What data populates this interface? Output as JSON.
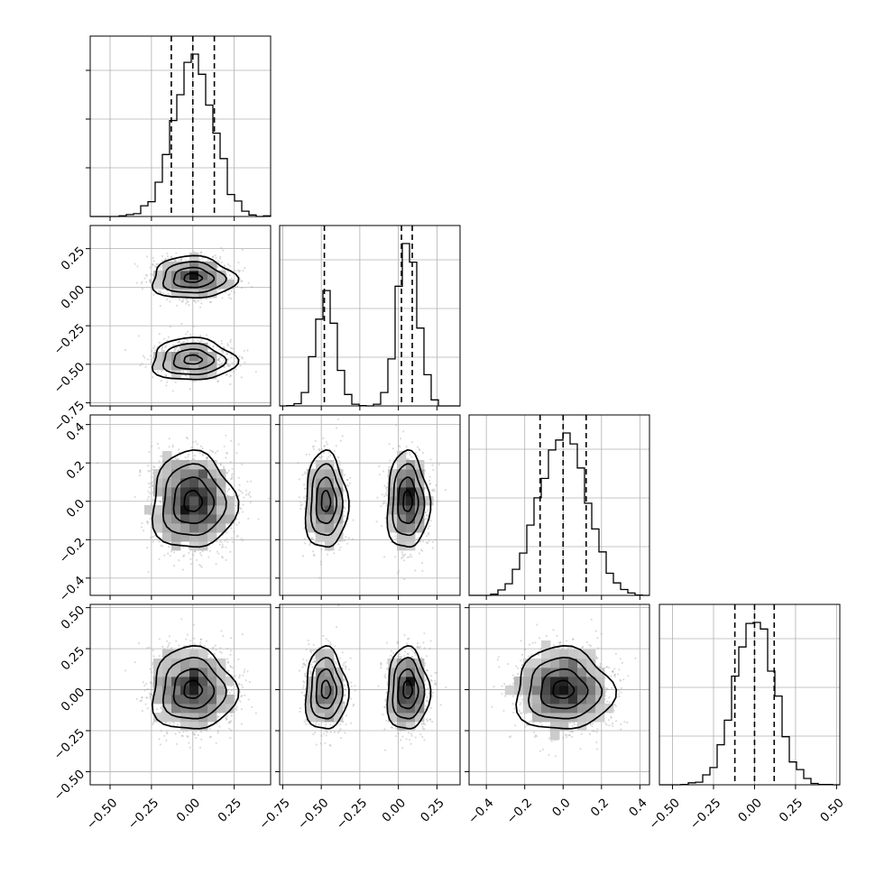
{
  "chart_data": {
    "type": "corner",
    "title": "",
    "n_params": 4,
    "params": [
      {
        "label": "",
        "range": [
          -0.62,
          0.47
        ],
        "ticks": [
          -0.5,
          -0.25,
          0.0,
          0.25
        ],
        "quantiles": [
          -0.13,
          0.0,
          0.13
        ],
        "mixture": [
          {
            "w": 1.0,
            "mu": 0.0,
            "sd": 0.12
          }
        ]
      },
      {
        "label": "",
        "range": [
          -0.77,
          0.4
        ],
        "ticks": [
          -0.75,
          -0.5,
          -0.25,
          0.0,
          0.25
        ],
        "quantiles": [
          -0.48,
          0.02,
          0.09
        ],
        "mixture": [
          {
            "w": 0.4,
            "mu": -0.47,
            "sd": 0.065
          },
          {
            "w": 0.6,
            "mu": 0.06,
            "sd": 0.065
          }
        ]
      },
      {
        "label": "",
        "range": [
          -0.49,
          0.45
        ],
        "ticks": [
          -0.4,
          -0.2,
          0.0,
          0.2,
          0.4
        ],
        "quantiles": [
          -0.12,
          0.0,
          0.12
        ],
        "mixture": [
          {
            "w": 1.0,
            "mu": 0.0,
            "sd": 0.12
          }
        ]
      },
      {
        "label": "",
        "range": [
          -0.58,
          0.52
        ],
        "ticks": [
          -0.5,
          -0.25,
          0.0,
          0.25,
          0.5
        ],
        "quantiles": [
          -0.12,
          0.0,
          0.12
        ],
        "mixture": [
          {
            "w": 1.0,
            "mu": 0.0,
            "sd": 0.12
          }
        ]
      }
    ],
    "tick_labels": {
      "x": [
        [
          "−0.50",
          "−0.25",
          "0.00",
          "0.25"
        ],
        [
          "−0.75",
          "−0.50",
          "−0.25",
          "0.00",
          "0.25"
        ],
        [
          "−0.4",
          "−0.2",
          "0.0",
          "0.2",
          "0.4"
        ],
        [
          "−0.50",
          "−0.25",
          "0.00",
          "0.25",
          "0.50"
        ]
      ],
      "y": [
        [],
        [
          "−0.75",
          "−0.50",
          "−0.25",
          "0.00",
          "0.25"
        ],
        [
          "−0.4",
          "−0.2",
          "0.0",
          "0.2",
          "0.4"
        ],
        [
          "−0.50",
          "−0.25",
          "0.00",
          "0.25",
          "0.50"
        ]
      ]
    },
    "grid": true,
    "legend": "none",
    "contour_levels": 4
  }
}
